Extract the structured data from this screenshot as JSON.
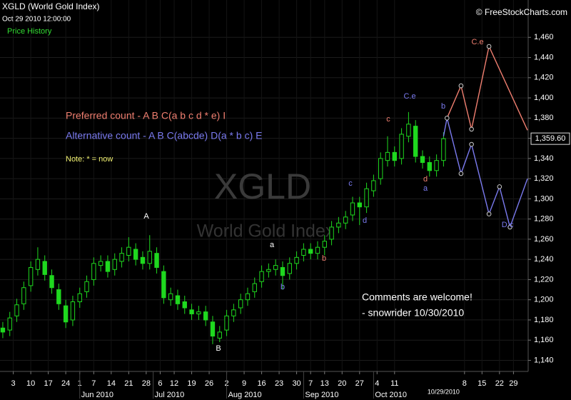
{
  "chart_data": {
    "type": "candlestick",
    "title": "XGLD (World Gold Index)",
    "subtitle": "Oct 29 2010 12:00:00",
    "panel_label": "Price History",
    "source": "© FreeStockCharts.com",
    "watermark": "XGLD",
    "watermark_subtitle": "World Gold Index",
    "color": "#1fd81f",
    "x": [
      0,
      2,
      4,
      6,
      8,
      10,
      12,
      14,
      16,
      18,
      20,
      22,
      24,
      26,
      28,
      30,
      32,
      34,
      36,
      38,
      40,
      42,
      44,
      46,
      48,
      50,
      52,
      54,
      56,
      58,
      60,
      62,
      64,
      66,
      68,
      70,
      72,
      74,
      76,
      78,
      80,
      82,
      84,
      86,
      88,
      90,
      92,
      94,
      96,
      98,
      100,
      102,
      104,
      106,
      108,
      110,
      112,
      114,
      116,
      118,
      120,
      122,
      124,
      126
    ],
    "open": [
      1172,
      1170,
      1184,
      1196,
      1214,
      1230,
      1238,
      1224,
      1210,
      1194,
      1180,
      1198,
      1208,
      1220,
      1234,
      1238,
      1230,
      1238,
      1244,
      1250,
      1242,
      1236,
      1246,
      1228,
      1200,
      1204,
      1198,
      1190,
      1186,
      1188,
      1178,
      1162,
      1170,
      1184,
      1192,
      1200,
      1208,
      1218,
      1228,
      1230,
      1232,
      1226,
      1236,
      1244,
      1250,
      1246,
      1252,
      1260,
      1272,
      1276,
      1284,
      1296,
      1292,
      1308,
      1320,
      1338,
      1346,
      1340,
      1362,
      1372,
      1342,
      1336,
      1328,
      1338
    ],
    "high": [
      1178,
      1188,
      1201,
      1218,
      1238,
      1252,
      1244,
      1230,
      1216,
      1200,
      1204,
      1212,
      1224,
      1242,
      1244,
      1244,
      1246,
      1252,
      1262,
      1256,
      1248,
      1264,
      1252,
      1234,
      1212,
      1210,
      1204,
      1196,
      1194,
      1194,
      1184,
      1174,
      1190,
      1196,
      1206,
      1212,
      1222,
      1234,
      1236,
      1240,
      1238,
      1242,
      1248,
      1256,
      1256,
      1258,
      1264,
      1278,
      1282,
      1288,
      1302,
      1302,
      1316,
      1324,
      1346,
      1362,
      1352,
      1370,
      1386,
      1378,
      1348,
      1342,
      1344,
      1366
    ],
    "low": [
      1162,
      1164,
      1178,
      1190,
      1208,
      1224,
      1219,
      1206,
      1190,
      1172,
      1174,
      1192,
      1202,
      1214,
      1228,
      1222,
      1224,
      1232,
      1238,
      1234,
      1230,
      1230,
      1226,
      1196,
      1194,
      1190,
      1186,
      1180,
      1180,
      1174,
      1156,
      1158,
      1164,
      1178,
      1186,
      1194,
      1202,
      1212,
      1222,
      1224,
      1210,
      1220,
      1230,
      1238,
      1240,
      1240,
      1244,
      1254,
      1266,
      1270,
      1278,
      1274,
      1286,
      1302,
      1314,
      1332,
      1332,
      1334,
      1356,
      1336,
      1330,
      1322,
      1322,
      1332
    ],
    "close": [
      1168,
      1182,
      1195,
      1212,
      1232,
      1240,
      1225,
      1212,
      1196,
      1178,
      1198,
      1206,
      1218,
      1236,
      1238,
      1228,
      1240,
      1246,
      1252,
      1240,
      1236,
      1248,
      1232,
      1202,
      1206,
      1196,
      1192,
      1186,
      1188,
      1180,
      1164,
      1168,
      1184,
      1190,
      1200,
      1206,
      1216,
      1228,
      1230,
      1234,
      1224,
      1236,
      1242,
      1250,
      1246,
      1252,
      1258,
      1272,
      1276,
      1282,
      1296,
      1292,
      1310,
      1318,
      1340,
      1346,
      1338,
      1364,
      1374,
      1342,
      1336,
      1328,
      1338,
      1359.6
    ],
    "xlim": [
      -0.8,
      150.2
    ],
    "ylim": [
      1129,
      1497
    ],
    "yticks": [
      {
        "value": 1140,
        "label": "1,140"
      },
      {
        "value": 1160,
        "label": "1,160"
      },
      {
        "value": 1180,
        "label": "1,180"
      },
      {
        "value": 1200,
        "label": "1,200"
      },
      {
        "value": 1220,
        "label": "1,220"
      },
      {
        "value": 1240,
        "label": "1,240"
      },
      {
        "value": 1260,
        "label": "1,260"
      },
      {
        "value": 1280,
        "label": "1,280"
      },
      {
        "value": 1300,
        "label": "1,300"
      },
      {
        "value": 1320,
        "label": "1,320"
      },
      {
        "value": 1340,
        "label": "1,340"
      },
      {
        "value": 1360,
        "label": "1,360"
      },
      {
        "value": 1380,
        "label": "1,380"
      },
      {
        "value": 1400,
        "label": "1,400"
      },
      {
        "value": 1420,
        "label": "1,420"
      },
      {
        "value": 1440,
        "label": "1,440"
      },
      {
        "value": 1460,
        "label": "1,460"
      }
    ],
    "xticks": [
      {
        "value": 3,
        "label": "3"
      },
      {
        "value": 8,
        "label": "10"
      },
      {
        "value": 13,
        "label": "17"
      },
      {
        "value": 18,
        "label": "24"
      },
      {
        "value": 22,
        "label": "1"
      },
      {
        "value": 26,
        "label": "7"
      },
      {
        "value": 31,
        "label": "14"
      },
      {
        "value": 36,
        "label": "21"
      },
      {
        "value": 41,
        "label": "28"
      },
      {
        "value": 45,
        "label": "6"
      },
      {
        "value": 49,
        "label": "12"
      },
      {
        "value": 54,
        "label": "19"
      },
      {
        "value": 59,
        "label": "26"
      },
      {
        "value": 64,
        "label": "2"
      },
      {
        "value": 69,
        "label": "9"
      },
      {
        "value": 74,
        "label": "16"
      },
      {
        "value": 79,
        "label": "23"
      },
      {
        "value": 84,
        "label": "30"
      },
      {
        "value": 88,
        "label": "7"
      },
      {
        "value": 92,
        "label": "13"
      },
      {
        "value": 97,
        "label": "20"
      },
      {
        "value": 102,
        "label": "27"
      },
      {
        "value": 107,
        "label": "4"
      },
      {
        "value": 112,
        "label": "11"
      },
      {
        "value": 132,
        "label": "8"
      },
      {
        "value": 137,
        "label": "15"
      },
      {
        "value": 142,
        "label": "22"
      },
      {
        "value": 146,
        "label": "29"
      }
    ],
    "month_ticks": [
      {
        "value": 22,
        "label": "Jun 2010"
      },
      {
        "value": 43,
        "label": "Jul 2010"
      },
      {
        "value": 64,
        "label": "Aug 2010"
      },
      {
        "value": 86,
        "label": "Sep 2010"
      },
      {
        "value": 106,
        "label": "Oct 2010"
      }
    ],
    "cursor_date": {
      "value": 126,
      "label": "10/29/2010"
    },
    "last_price": {
      "value": 1359.6,
      "label": "1,359.60"
    },
    "grid": true,
    "projections": [
      {
        "color": "#f07f70",
        "x": [
          127,
          131,
          134,
          139,
          150
        ],
        "values": [
          1380,
          1412,
          1369,
          1451,
          1368
        ]
      },
      {
        "color": "#7b7bf0",
        "x": [
          126,
          127,
          131,
          134,
          139,
          142,
          145,
          150
        ],
        "values": [
          1362,
          1380,
          1325,
          1354,
          1285,
          1312,
          1272,
          1320
        ]
      }
    ],
    "annotations": [
      {
        "text": "A",
        "color": "#ffffff"
      },
      {
        "text": "B",
        "color": "#ffffff"
      },
      {
        "text": "a",
        "color": "#ffffff"
      },
      {
        "text": "b",
        "color": "#7b7bf0"
      },
      {
        "text": "c",
        "color": "#7b7bf0"
      },
      {
        "text": "d",
        "color": "#7b7bf0"
      },
      {
        "text": "C.e",
        "color": "#7b7bf0"
      },
      {
        "text": "b",
        "color": "#7b7bf0"
      },
      {
        "text": "a",
        "color": "#7b7bf0"
      },
      {
        "text": "D.c",
        "color": "#7b7bf0"
      },
      {
        "text": "b",
        "color": "#f07f70"
      },
      {
        "text": "c",
        "color": "#f07f70"
      },
      {
        "text": "d",
        "color": "#f07f70"
      },
      {
        "text": "C.e",
        "color": "#f07f70"
      }
    ],
    "count_notes": [
      {
        "text": "Preferred count -  A B C(a b c d * e) I",
        "color": "#f07f70"
      },
      {
        "text": "Alternative count -  A B C(abcde) D(a * b c) E",
        "color": "#7b7bf0"
      },
      {
        "text": "Note:  * = now",
        "color": "#f0f070"
      }
    ],
    "comments": [
      "Comments are welcome!",
      "- snowrider  10/30/2010"
    ]
  }
}
